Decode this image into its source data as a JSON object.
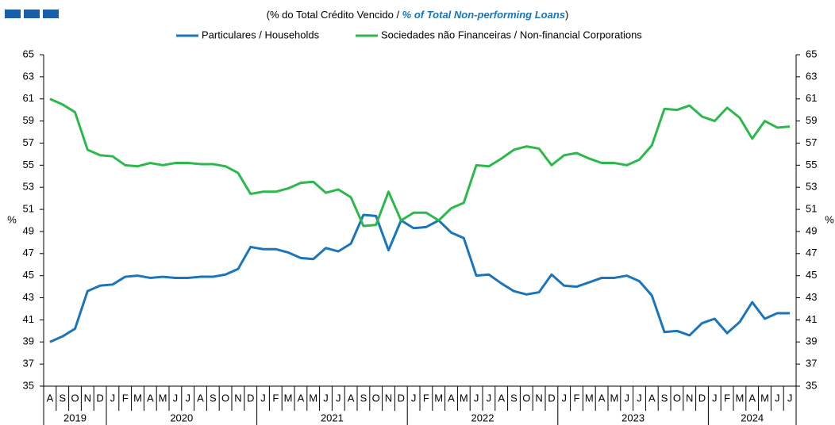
{
  "chart_data": {
    "type": "line",
    "title_parts": [
      "(% do Total  Crédito Vencido / ",
      "% of Total Non-performing Loans",
      ")"
    ],
    "category_groups": [
      {
        "label": "2019",
        "categories": [
          "A",
          "S",
          "O",
          "N",
          "D"
        ]
      },
      {
        "label": "2020",
        "categories": [
          "J",
          "F",
          "M",
          "A",
          "M",
          "J",
          "J",
          "A",
          "S",
          "O",
          "N",
          "D"
        ]
      },
      {
        "label": "2021",
        "categories": [
          "J",
          "F",
          "M",
          "A",
          "M",
          "J",
          "J",
          "A",
          "S",
          "O",
          "N",
          "D"
        ]
      },
      {
        "label": "2022",
        "categories": [
          "J",
          "F",
          "M",
          "A",
          "M",
          "J",
          "J",
          "A",
          "S",
          "O",
          "N",
          "D"
        ]
      },
      {
        "label": "2023",
        "categories": [
          "J",
          "F",
          "M",
          "A",
          "M",
          "J",
          "J",
          "A",
          "S",
          "O",
          "N",
          "D"
        ]
      },
      {
        "label": "2024",
        "categories": [
          "J",
          "F",
          "M",
          "A",
          "M",
          "J",
          "J"
        ]
      }
    ],
    "series": [
      {
        "name": "Particulares / Households",
        "color": "#1a75bc",
        "values": [
          39.0,
          39.5,
          40.2,
          43.6,
          44.1,
          44.2,
          44.9,
          45.0,
          44.8,
          44.9,
          44.8,
          44.8,
          44.9,
          44.9,
          45.1,
          45.6,
          47.6,
          47.4,
          47.4,
          47.1,
          46.6,
          46.5,
          47.5,
          47.2,
          47.9,
          50.5,
          50.4,
          47.3,
          50.0,
          49.3,
          49.4,
          50.0,
          48.9,
          48.4,
          45.0,
          45.1,
          44.3,
          43.6,
          43.3,
          43.5,
          45.1,
          44.1,
          44.0,
          44.4,
          44.8,
          44.8,
          45.0,
          44.5,
          43.2,
          39.9,
          40.0,
          39.6,
          40.7,
          41.1,
          39.8,
          40.8,
          42.6,
          41.1,
          41.6,
          41.6
        ]
      },
      {
        "name": "Sociedades não Financeiras / Non-financial Corporations",
        "color": "#2db84b",
        "values": [
          61.0,
          60.5,
          59.8,
          56.4,
          55.9,
          55.8,
          55.0,
          54.9,
          55.2,
          55.0,
          55.2,
          55.2,
          55.1,
          55.1,
          54.9,
          54.3,
          52.4,
          52.6,
          52.6,
          52.9,
          53.4,
          53.5,
          52.5,
          52.8,
          52.1,
          49.5,
          49.6,
          52.6,
          50.0,
          50.7,
          50.7,
          50.0,
          51.1,
          51.6,
          55.0,
          54.9,
          55.6,
          56.4,
          56.7,
          56.5,
          55.0,
          55.9,
          56.1,
          55.6,
          55.2,
          55.2,
          55.0,
          55.5,
          56.8,
          60.1,
          60.0,
          60.4,
          59.4,
          59.0,
          60.2,
          59.3,
          57.4,
          59.0,
          58.4,
          58.5
        ]
      }
    ],
    "ylabel": "%",
    "y2label": "%",
    "ylim": [
      35,
      65
    ],
    "yticks": [
      35,
      37,
      39,
      41,
      43,
      45,
      47,
      49,
      51,
      53,
      55,
      57,
      59,
      61,
      63,
      65
    ],
    "y2lim": [
      35,
      65
    ],
    "y2ticks": [
      35,
      37,
      39,
      41,
      43,
      45,
      47,
      49,
      51,
      53,
      55,
      57,
      59,
      61,
      63,
      65
    ],
    "grid": false
  }
}
